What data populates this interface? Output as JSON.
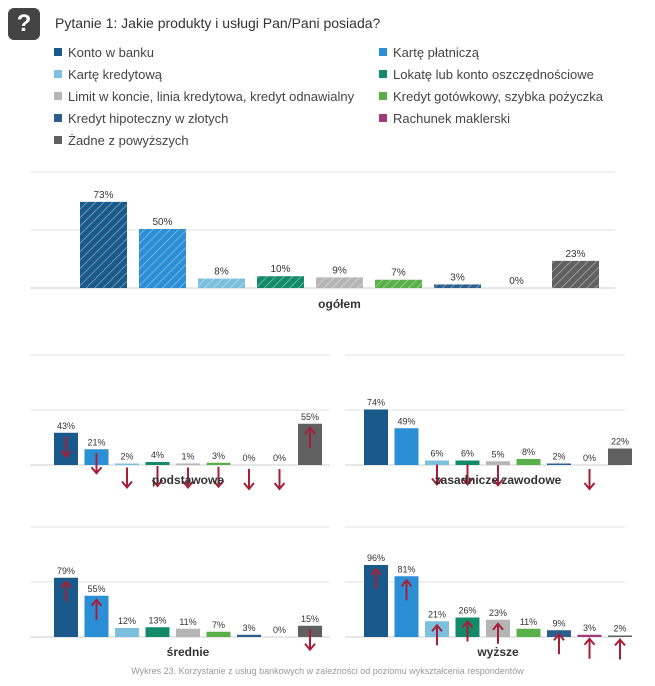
{
  "header": {
    "icon": "question-icon",
    "badge_label": "?",
    "title": "Pytanie 1: Jakie produkty i usługi Pan/Pani posiada?"
  },
  "legend": [
    {
      "name": "Konto w banku",
      "color": "#1a5a8a"
    },
    {
      "name": "Kartę płatniczą",
      "color": "#2b8fd6"
    },
    {
      "name": "Kartę kredytową",
      "color": "#7cc0de"
    },
    {
      "name": "Lokatę lub konto oszczędnościowe",
      "color": "#138a6a"
    },
    {
      "name": "Limit w koncie, linia kredytowa, kredyt odnawialny",
      "color": "#b5b5b5"
    },
    {
      "name": "Kredyt gotówkowy, szybka pożyczka",
      "color": "#59b04a"
    },
    {
      "name": "Kredyt hipoteczny w złotych",
      "color": "#2c5d8f"
    },
    {
      "name": "Rachunek maklerski",
      "color": "#a23a7a"
    },
    {
      "name": "Żadne z powyższych",
      "color": "#606060"
    }
  ],
  "chart_data": [
    {
      "type": "bar",
      "title": "ogółem",
      "categories": [
        "Konto w banku",
        "Kartę płatniczą",
        "Kartę kredytową",
        "Lokatę lub konto oszczędnościowe",
        "Limit w koncie, linia kredytowa, kredyt odnawialny",
        "Kredyt gotówkowy, szybka pożyczka",
        "Kredyt hipoteczny w złotych",
        "Rachunek maklerski",
        "Żadne z powyższych"
      ],
      "values": [
        73,
        50,
        8,
        10,
        9,
        7,
        3,
        0,
        23
      ],
      "labels": [
        "73%",
        "50%",
        "8%",
        "10%",
        "9%",
        "7%",
        "3%",
        "0%",
        "23%"
      ],
      "ylim": [
        0,
        100
      ],
      "style": "hatched"
    },
    {
      "type": "bar",
      "title": "podstawowe",
      "categories": [
        "Konto w banku",
        "Kartę płatniczą",
        "Kartę kredytową",
        "Lokatę lub konto oszczędnościowe",
        "Limit w koncie, linia kredytowa, kredyt odnawialny",
        "Kredyt gotówkowy, szybka pożyczka",
        "Kredyt hipoteczny w złotych",
        "Rachunek maklerski",
        "Żadne z powyższych"
      ],
      "values": [
        43,
        21,
        2,
        4,
        1,
        3,
        0,
        0,
        55
      ],
      "labels": [
        "43%",
        "21%",
        "2%",
        "4%",
        "1%",
        "3%",
        "0%",
        "0%",
        "55%"
      ],
      "arrows": [
        "down",
        "down",
        "down",
        "down",
        "down",
        "down",
        "down",
        "down",
        "up"
      ],
      "ylim": [
        0,
        100
      ]
    },
    {
      "type": "bar",
      "title": "zasadnicze zawodowe",
      "categories": [
        "Konto w banku",
        "Kartę płatniczą",
        "Kartę kredytową",
        "Lokatę lub konto oszczędnościowe",
        "Limit w koncie, linia kredytowa, kredyt odnawialny",
        "Kredyt gotówkowy, szybka pożyczka",
        "Kredyt hipoteczny w złotych",
        "Rachunek maklerski",
        "Żadne z powyższych"
      ],
      "values": [
        74,
        49,
        6,
        6,
        5,
        8,
        2,
        0,
        22
      ],
      "labels": [
        "74%",
        "49%",
        "6%",
        "6%",
        "5%",
        "8%",
        "2%",
        "0%",
        "22%"
      ],
      "arrows": [
        "",
        "",
        "down",
        "down",
        "down",
        "",
        "",
        "down",
        ""
      ],
      "ylim": [
        0,
        100
      ]
    },
    {
      "type": "bar",
      "title": "średnie",
      "categories": [
        "Konto w banku",
        "Kartę płatniczą",
        "Kartę kredytową",
        "Lokatę lub konto oszczędnościowe",
        "Limit w koncie, linia kredytowa, kredyt odnawialny",
        "Kredyt gotówkowy, szybka pożyczka",
        "Kredyt hipoteczny w złotych",
        "Rachunek maklerski",
        "Żadne z powyższych"
      ],
      "values": [
        79,
        55,
        12,
        13,
        11,
        7,
        3,
        0,
        15
      ],
      "labels": [
        "79%",
        "55%",
        "12%",
        "13%",
        "11%",
        "7%",
        "3%",
        "0%",
        "15%"
      ],
      "arrows": [
        "up",
        "up",
        "",
        "",
        "",
        "",
        "",
        "",
        "down"
      ],
      "ylim": [
        0,
        100
      ]
    },
    {
      "type": "bar",
      "title": "wyższe",
      "categories": [
        "Konto w banku",
        "Kartę płatniczą",
        "Kartę kredytową",
        "Lokatę lub konto oszczędnościowe",
        "Limit w koncie, linia kredytowa, kredyt odnawialny",
        "Kredyt gotówkowy, szybka pożyczka",
        "Kredyt hipoteczny w złotych",
        "Rachunek maklerski",
        "Żadne z powyższych"
      ],
      "values": [
        96,
        81,
        21,
        26,
        23,
        11,
        9,
        3,
        2
      ],
      "labels": [
        "96%",
        "81%",
        "21%",
        "26%",
        "23%",
        "11%",
        "9%",
        "3%",
        "2%"
      ],
      "arrows": [
        "up",
        "up",
        "up",
        "up",
        "up",
        "",
        "up",
        "up",
        "up"
      ],
      "ylim": [
        0,
        100
      ]
    }
  ],
  "caption": "Wykres 23. Korzystanie z usług bankowych w zależności od poziomu wykształcenia respondentów"
}
